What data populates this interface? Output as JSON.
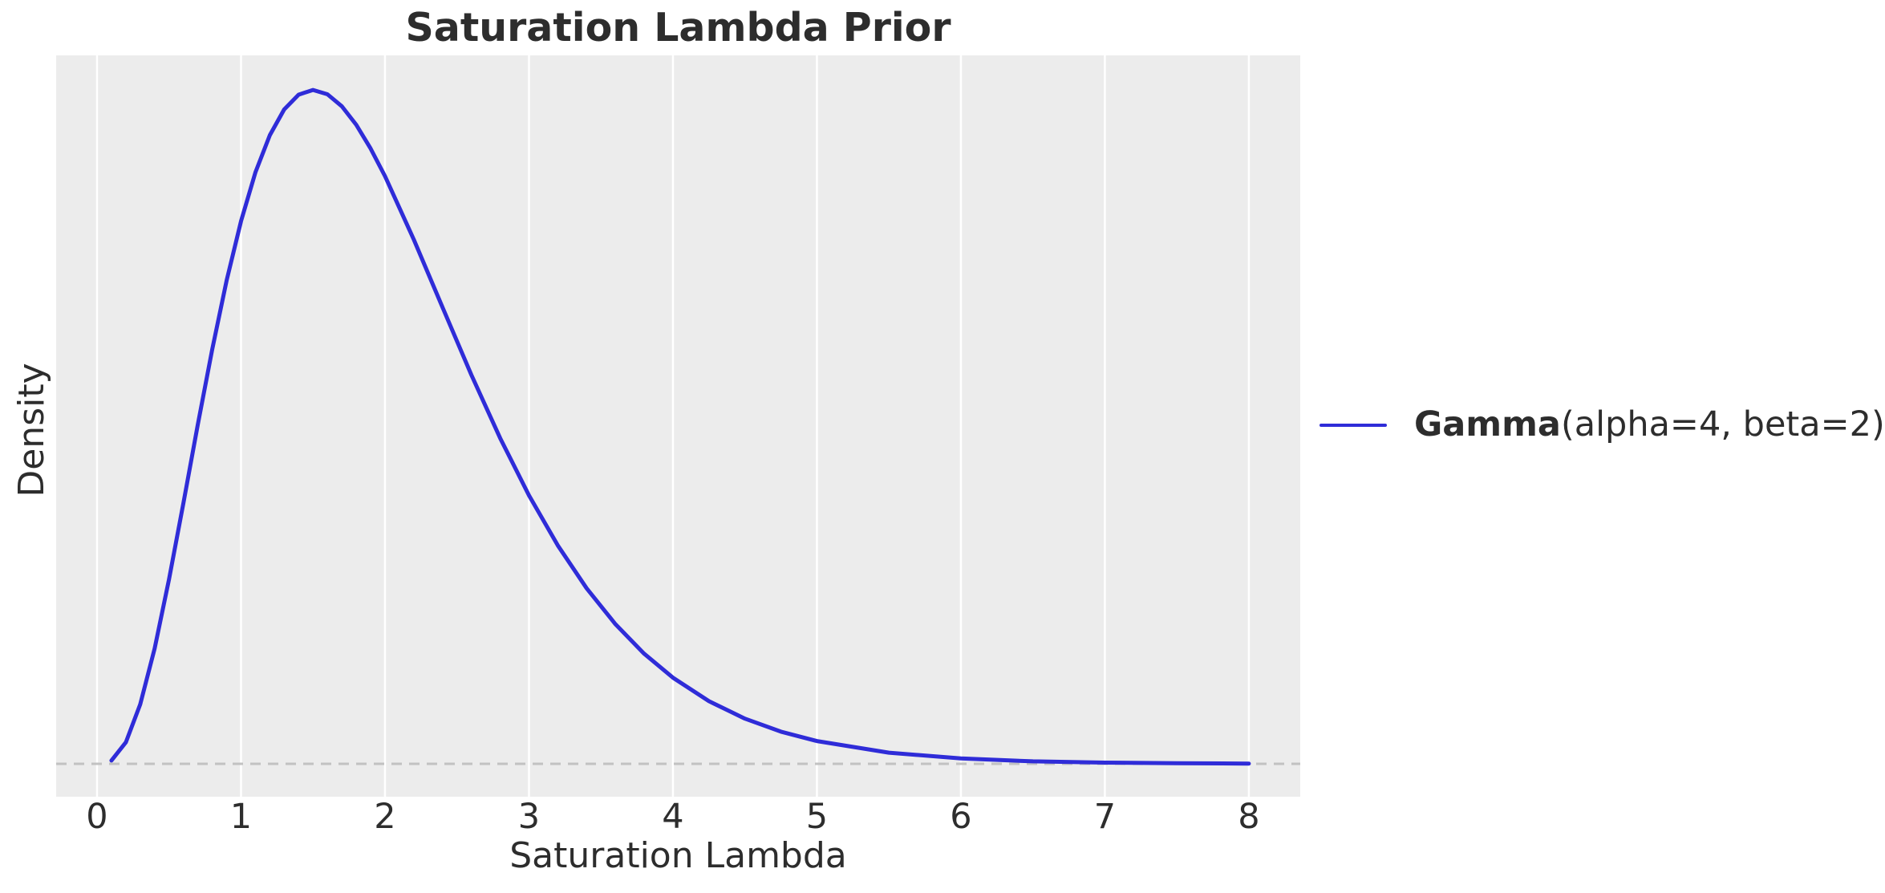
{
  "chart_data": {
    "type": "line",
    "title": "Saturation Lambda Prior",
    "xlabel": "Saturation Lambda",
    "ylabel": "Density",
    "xlim": [
      -0.284,
      8.357
    ],
    "ylim": [
      -0.0219,
      0.4711
    ],
    "x_ticks": [
      0,
      1,
      2,
      3,
      4,
      5,
      6,
      7,
      8
    ],
    "y_ticks": [],
    "grid": {
      "vertical": true,
      "horizontal": false,
      "color": "#ffffff"
    },
    "plot_background": "#ececec",
    "figure_background": "#ffffff",
    "text_color": "#2d2d2d",
    "zero_line": {
      "y": 0,
      "style": "dashed",
      "color": "#c2c2c2"
    },
    "legend": {
      "position": "center-right-outside",
      "frame": false,
      "entries": [
        {
          "label_bold": "Gamma",
          "label_rest": "(alpha=4, beta=2)",
          "color": "#2f2cd8"
        }
      ]
    },
    "series": [
      {
        "name": "Gamma(alpha=4, beta=2)",
        "distribution": "Gamma",
        "parameters": {
          "alpha": 4,
          "beta": 2
        },
        "color": "#2f2cd8",
        "line_width": 5,
        "x": [
          0.1,
          0.2,
          0.3,
          0.4,
          0.5,
          0.6,
          0.7,
          0.8,
          0.9,
          1.0,
          1.1,
          1.2,
          1.3,
          1.4,
          1.5,
          1.6,
          1.7,
          1.8,
          1.9,
          2.0,
          2.2,
          2.4,
          2.6,
          2.8,
          3.0,
          3.2,
          3.4,
          3.6,
          3.8,
          4.0,
          4.25,
          4.5,
          4.75,
          5.0,
          5.5,
          6.0,
          6.5,
          7.0,
          7.5,
          8.0
        ],
        "y": [
          0.002183,
          0.0143,
          0.039514,
          0.076687,
          0.122626,
          0.173488,
          0.225553,
          0.275656,
          0.321341,
          0.360894,
          0.393277,
          0.418029,
          0.435147,
          0.444968,
          0.448084,
          0.445235,
          0.437254,
          0.424938,
          0.409178,
          0.390734,
          0.348611,
          0.303382,
          0.25856,
          0.216469,
          0.17847,
          0.145188,
          0.116736,
          0.092887,
          0.073229,
          0.057253,
          0.041651,
          0.029989,
          0.021393,
          0.015133,
          0.00741,
          0.003539,
          0.001655,
          0.000761,
          0.000344,
          0.000154
        ]
      }
    ]
  }
}
